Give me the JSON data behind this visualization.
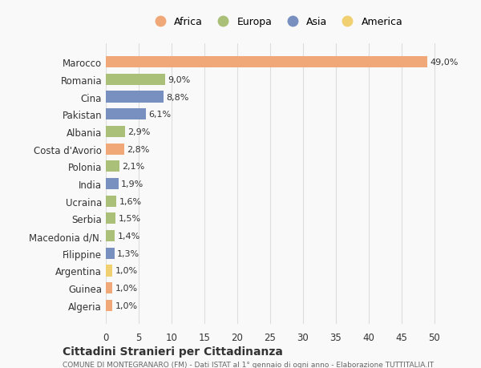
{
  "countries": [
    "Algeria",
    "Guinea",
    "Argentina",
    "Filippine",
    "Macedonia d/N.",
    "Serbia",
    "Ucraina",
    "India",
    "Polonia",
    "Costa d'Avorio",
    "Albania",
    "Pakistan",
    "Cina",
    "Romania",
    "Marocco"
  ],
  "values": [
    1.0,
    1.0,
    1.0,
    1.3,
    1.4,
    1.5,
    1.6,
    1.9,
    2.1,
    2.8,
    2.9,
    6.1,
    8.8,
    9.0,
    49.0
  ],
  "labels": [
    "1,0%",
    "1,0%",
    "1,0%",
    "1,3%",
    "1,4%",
    "1,5%",
    "1,6%",
    "1,9%",
    "2,1%",
    "2,8%",
    "2,9%",
    "6,1%",
    "8,8%",
    "9,0%",
    "49,0%"
  ],
  "continents": [
    "Africa",
    "Africa",
    "America",
    "Asia",
    "Europa",
    "Europa",
    "Europa",
    "Asia",
    "Europa",
    "Africa",
    "Europa",
    "Asia",
    "Asia",
    "Europa",
    "Africa"
  ],
  "colors": {
    "Africa": "#F0A878",
    "Europa": "#AABF78",
    "Asia": "#7890C0",
    "America": "#F0D070"
  },
  "legend_order": [
    "Africa",
    "Europa",
    "Asia",
    "America"
  ],
  "legend_colors": [
    "#F0A878",
    "#AABF78",
    "#7890C0",
    "#F0D070"
  ],
  "xlim": [
    0,
    52
  ],
  "xticks": [
    0,
    5,
    10,
    15,
    20,
    25,
    30,
    35,
    40,
    45,
    50
  ],
  "title": "Cittadini Stranieri per Cittadinanza",
  "subtitle": "COMUNE DI MONTEGRANARO (FM) - Dati ISTAT al 1° gennaio di ogni anno - Elaborazione TUTTITALIA.IT",
  "background_color": "#f9f9f9",
  "bar_height": 0.65,
  "grid_color": "#dddddd",
  "text_color": "#333333"
}
